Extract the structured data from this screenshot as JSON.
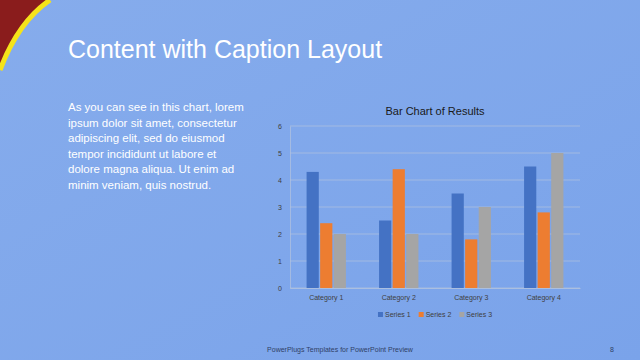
{
  "slide": {
    "title": "Content with Caption Layout",
    "caption": [
      "As you can see in this chart, lorem",
      "ipsum dolor sit amet, consectetur",
      "adipiscing elit, sed do eiusmod",
      "tempor incididunt ut labore et",
      "dolore magna aliqua. Ut enim ad",
      "minim veniam, quis nostrud."
    ],
    "footer": "PowerPlugs Templates for PowerPoint Preview",
    "page": 8
  },
  "chart_data": {
    "type": "bar",
    "title": "Bar Chart of Results",
    "categories": [
      "Category 1",
      "Category 2",
      "Category 3",
      "Category 4"
    ],
    "series": [
      {
        "name": "Series 1",
        "color": "#4472c4",
        "values": [
          4.3,
          2.5,
          3.5,
          4.5
        ]
      },
      {
        "name": "Series 2",
        "color": "#ed7d31",
        "values": [
          2.4,
          4.4,
          1.8,
          2.8
        ]
      },
      {
        "name": "Series 3",
        "color": "#a5a5a5",
        "values": [
          2.0,
          2.0,
          3.0,
          5.0
        ]
      }
    ],
    "ylim": [
      0,
      6
    ],
    "yticks": [
      0,
      1,
      2,
      3,
      4,
      5,
      6
    ],
    "grid": true,
    "legend": "bottom"
  }
}
